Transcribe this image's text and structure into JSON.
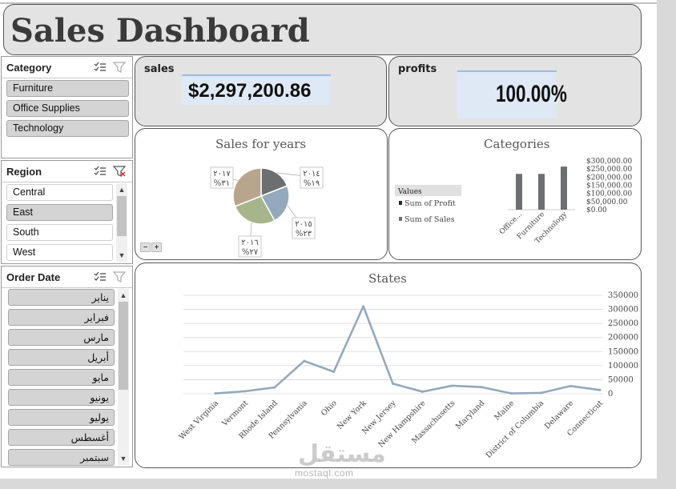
{
  "header": {
    "title": "Sales Dashboard"
  },
  "kpis": {
    "sales": {
      "label": "sales",
      "value": "$2,297,200.86"
    },
    "profits": {
      "label": "profits",
      "value": "100.00%",
      "fill_fraction": 1.0
    }
  },
  "slicers": {
    "category": {
      "title": "Category",
      "items": [
        {
          "label": "Furniture",
          "selected": true
        },
        {
          "label": "Office Supplies",
          "selected": true
        },
        {
          "label": "Technology",
          "selected": true
        }
      ]
    },
    "region": {
      "title": "Region",
      "items": [
        {
          "label": "Central",
          "selected": false
        },
        {
          "label": "East",
          "selected": true
        },
        {
          "label": "South",
          "selected": false
        },
        {
          "label": "West",
          "selected": false
        }
      ]
    },
    "order_date": {
      "title": "Order Date",
      "items": [
        {
          "label": "يناير",
          "selected": true
        },
        {
          "label": "فبراير",
          "selected": true
        },
        {
          "label": "مارس",
          "selected": true
        },
        {
          "label": "أبريل",
          "selected": true
        },
        {
          "label": "مايو",
          "selected": true
        },
        {
          "label": "يونيو",
          "selected": true
        },
        {
          "label": "يوليو",
          "selected": true
        },
        {
          "label": "أغسطس",
          "selected": true
        },
        {
          "label": "سبتمبر",
          "selected": true
        }
      ]
    }
  },
  "colors": {
    "pie": [
      "#6d6e71",
      "#94a9bb",
      "#a6b58b",
      "#b8a58d"
    ],
    "line": "#94a9bb",
    "bar": "#6d6e71",
    "slicer_selected": "#d4d4d4"
  },
  "watermark": {
    "brand": "مستقل",
    "site": "mostaql.com"
  },
  "chart_data": [
    {
      "type": "pie",
      "title": "Sales for years",
      "categories": [
        "٢٠١٤",
        "٢٠١٥",
        "٢٠١٦",
        "٢٠١٧"
      ],
      "values": [
        19,
        23,
        27,
        31
      ],
      "labels": [
        "%١٩",
        "%٢٣",
        "%٢٧",
        "%٣١"
      ],
      "controls": [
        "−",
        "+"
      ]
    },
    {
      "type": "bar",
      "title": "Categories",
      "categories": [
        "Office...",
        "Furniture",
        "Technology"
      ],
      "series": [
        {
          "name": "Sum of Profit",
          "values": [
            0,
            0,
            0
          ]
        },
        {
          "name": "Sum of Sales",
          "values": [
            220000,
            220000,
            265000
          ]
        }
      ],
      "legend_title": "Values",
      "ylim": [
        0,
        300000
      ],
      "yticks": [
        "$0.00",
        "$50,000.00",
        "$100,000.00",
        "$150,000.00",
        "$200,000.00",
        "$250,000.00",
        "$300,000.00"
      ],
      "legend_position": "left"
    },
    {
      "type": "line",
      "title": "States",
      "categories": [
        "West Virginia",
        "Vermont",
        "Rhode Island",
        "Pennsylvania",
        "Ohio",
        "New York",
        "New Jersey",
        "New Hampshire",
        "Massachusetts",
        "Maryland",
        "Maine",
        "District of Columbia",
        "Delaware",
        "Connecticut"
      ],
      "values": [
        1200,
        8900,
        22500,
        116500,
        78300,
        310900,
        35800,
        7300,
        28600,
        23700,
        1300,
        2900,
        27500,
        13400
      ],
      "ylim": [
        0,
        350000
      ],
      "yticks": [
        "0",
        "50000",
        "100000",
        "150000",
        "200000",
        "250000",
        "300000",
        "350000"
      ],
      "grid": true
    }
  ]
}
